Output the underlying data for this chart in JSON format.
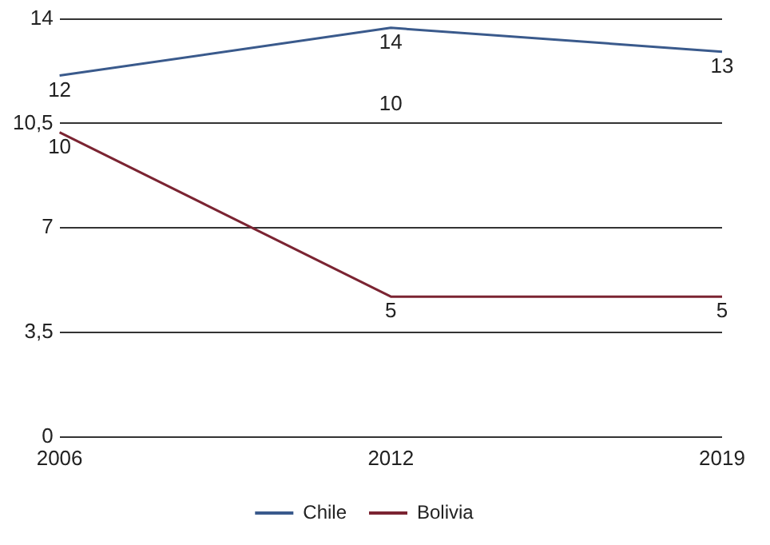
{
  "chart_data": {
    "type": "line",
    "categories": [
      "2006",
      "2012",
      "2019"
    ],
    "series": [
      {
        "name": "Chile",
        "color": "#3a5a8c",
        "values": [
          12.1,
          13.7,
          12.9
        ],
        "value_labels": [
          "12",
          "14",
          "13"
        ]
      },
      {
        "name": "Bolivia",
        "color": "#7b2432",
        "values": [
          10.2,
          4.7,
          4.7
        ],
        "value_labels": [
          "10",
          "5",
          "5"
        ]
      }
    ],
    "ylim": [
      0,
      14
    ],
    "yticks": [
      0,
      {
        "value": 3.5,
        "label": "3,5"
      },
      7,
      {
        "value": 10.5,
        "label": "10,5"
      },
      14
    ],
    "grid": "y",
    "legend": "bottom",
    "marker": "none",
    "line_style": "solid",
    "annotations": [
      "10"
    ]
  }
}
